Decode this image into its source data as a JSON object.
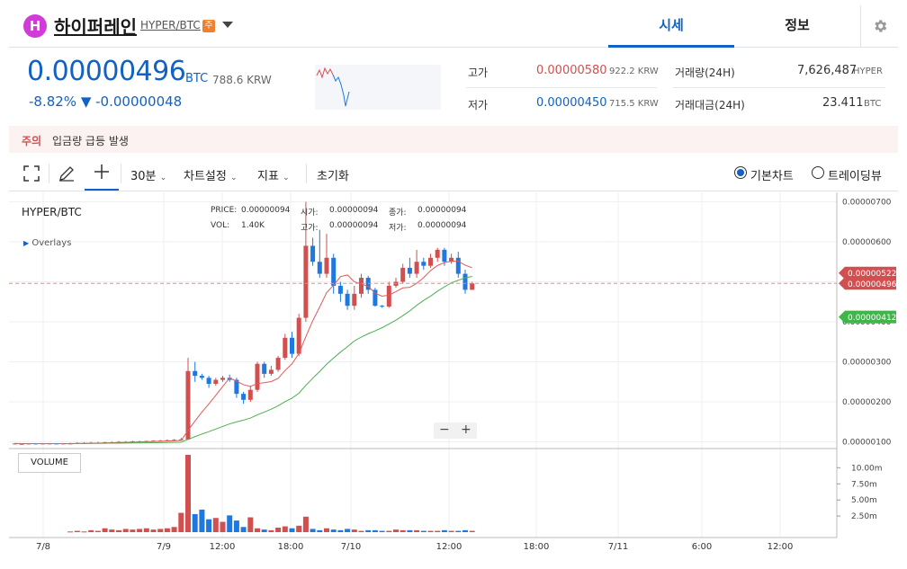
{
  "header": {
    "logo_letter": "H",
    "coin_name": "하이퍼레인",
    "pair": "HYPER/BTC",
    "caution_badge": "주",
    "tabs": [
      {
        "label": "시세"
      },
      {
        "label": "정보"
      }
    ]
  },
  "summary": {
    "price": "0.00000496",
    "price_unit": "BTC",
    "price_krw": "788.6 KRW",
    "change_rate": "-8.82% ▼ -0.00000048",
    "high_label": "고가",
    "high_price": "0.00000580",
    "high_krw": "922.2 KRW",
    "low_label": "저가",
    "low_price": "0.00000450",
    "low_krw": "715.5 KRW",
    "volume_label": "거래량(24H)",
    "volume_value": "7,626,487",
    "volume_unit": "HYPER",
    "amount_label": "거래대금(24H)",
    "amount_value": "23.411",
    "amount_unit": "BTC"
  },
  "notice": {
    "label": "주의",
    "text": "입금량 급등 발생"
  },
  "toolbar": {
    "interval": "30분",
    "chart_settings": "차트설정",
    "indicators": "지표",
    "reset": "초기화",
    "basic_chart": "기본차트",
    "tradingview": "트레이딩뷰"
  },
  "chart_legend": {
    "pair": "HYPER/BTC",
    "overlays": "Overlays",
    "price_label": "PRICE:",
    "price_value": "0.00000094",
    "vol_label": "VOL:",
    "vol_value": "1.40K",
    "open_label": "시가:",
    "open_value": "0.00000094",
    "close_label": "종가:",
    "close_value": "0.00000094",
    "high_label": "고가:",
    "high_value": "0.00000094",
    "low_label": "저가:",
    "low_value": "0.00000094",
    "volume_pane_label": "VOLUME"
  },
  "colors": {
    "up": "#d24f4f",
    "down": "#1f78e0",
    "ma_short": "#e05a5a",
    "ma_long": "#4caf50",
    "accent": "#1261c4"
  },
  "chart_data": {
    "type": "candlestick",
    "y_ticks": [
      "0.00000700",
      "0.00000600",
      "0.00000500",
      "0.00000400",
      "0.00000300",
      "0.00000200",
      "0.00000100"
    ],
    "ylim": [
      9e-07,
      7.1e-06
    ],
    "x_ticks": [
      "7/8",
      "7/9",
      "12:00",
      "18:00",
      "7/10",
      "12:00",
      "18:00",
      "7/11",
      "6:00",
      "12:00"
    ],
    "price_badges": [
      {
        "value": "0.00000522",
        "series": "ma_short"
      },
      {
        "value": "0.00000496",
        "series": "current"
      },
      {
        "value": "0.00000412",
        "series": "ma_long"
      }
    ],
    "volume_ticks": [
      "10.00m",
      "7.50m",
      "5.00m",
      "2.50m"
    ],
    "volume_ylim": [
      0,
      12
    ],
    "candles": [
      [
        0.95,
        0.96,
        0.97,
        0.94
      ],
      [
        0.95,
        0.95,
        0.96,
        0.94
      ],
      [
        0.95,
        0.96,
        0.97,
        0.94
      ],
      [
        0.96,
        0.95,
        0.97,
        0.94
      ],
      [
        0.95,
        0.96,
        0.97,
        0.94
      ],
      [
        0.96,
        0.96,
        0.97,
        0.95
      ],
      [
        0.96,
        0.95,
        0.97,
        0.94
      ],
      [
        0.95,
        0.96,
        0.97,
        0.94
      ],
      [
        0.96,
        0.96,
        0.98,
        0.95
      ],
      [
        0.96,
        0.97,
        0.99,
        0.95
      ],
      [
        0.97,
        0.97,
        0.99,
        0.96
      ],
      [
        0.97,
        0.98,
        1.0,
        0.96
      ],
      [
        0.98,
        0.98,
        1.0,
        0.97
      ],
      [
        0.98,
        0.99,
        1.0,
        0.97
      ],
      [
        0.99,
        0.99,
        1.01,
        0.98
      ],
      [
        0.99,
        1.0,
        1.02,
        0.98
      ],
      [
        1.0,
        1.0,
        1.02,
        0.99
      ],
      [
        1.0,
        1.01,
        1.03,
        0.99
      ],
      [
        1.01,
        1.01,
        1.03,
        1.0
      ],
      [
        1.01,
        1.02,
        1.03,
        1.0
      ],
      [
        1.02,
        1.03,
        1.04,
        1.01
      ],
      [
        1.03,
        1.03,
        1.05,
        1.02
      ],
      [
        1.03,
        1.04,
        1.06,
        1.02
      ],
      [
        1.04,
        1.05,
        1.07,
        1.03
      ],
      [
        1.05,
        1.06,
        1.1,
        1.04
      ],
      [
        1.06,
        2.77,
        3.1,
        1.05
      ],
      [
        2.77,
        2.65,
        3.0,
        2.5
      ],
      [
        2.65,
        2.6,
        2.7,
        2.55
      ],
      [
        2.6,
        2.45,
        2.65,
        2.35
      ],
      [
        2.45,
        2.55,
        2.6,
        2.4
      ],
      [
        2.55,
        2.6,
        2.65,
        2.5
      ],
      [
        2.6,
        2.55,
        2.68,
        2.5
      ],
      [
        2.55,
        2.2,
        2.6,
        2.1
      ],
      [
        2.2,
        2.05,
        2.25,
        1.95
      ],
      [
        2.05,
        2.3,
        2.4,
        2.0
      ],
      [
        2.3,
        2.95,
        3.0,
        2.25
      ],
      [
        2.95,
        2.7,
        3.0,
        2.6
      ],
      [
        2.7,
        2.8,
        2.9,
        2.65
      ],
      [
        2.8,
        3.1,
        3.15,
        2.75
      ],
      [
        3.1,
        3.6,
        3.7,
        3.05
      ],
      [
        3.6,
        3.2,
        3.75,
        3.1
      ],
      [
        3.2,
        4.1,
        4.2,
        3.15
      ],
      [
        4.1,
        5.9,
        7.0,
        4.0
      ],
      [
        5.9,
        5.5,
        6.1,
        5.4
      ],
      [
        5.5,
        5.2,
        6.3,
        5.1
      ],
      [
        5.2,
        5.6,
        6.2,
        5.1
      ],
      [
        5.6,
        4.9,
        5.7,
        4.7
      ],
      [
        4.9,
        4.7,
        5.0,
        4.5
      ],
      [
        4.7,
        4.4,
        4.8,
        4.3
      ],
      [
        4.4,
        4.7,
        4.9,
        4.3
      ],
      [
        4.7,
        5.1,
        5.2,
        4.6
      ],
      [
        5.1,
        4.8,
        5.15,
        4.7
      ],
      [
        4.8,
        4.4,
        4.85,
        4.38
      ],
      [
        4.4,
        4.38,
        4.42,
        4.35
      ],
      [
        4.38,
        4.9,
        5.0,
        4.35
      ],
      [
        4.9,
        5.0,
        5.1,
        4.85
      ],
      [
        5.0,
        5.35,
        5.45,
        4.95
      ],
      [
        5.35,
        5.2,
        5.6,
        5.1
      ],
      [
        5.2,
        5.5,
        5.8,
        5.1
      ],
      [
        5.5,
        5.4,
        5.6,
        5.3
      ],
      [
        5.4,
        5.6,
        5.7,
        5.35
      ],
      [
        5.6,
        5.8,
        5.85,
        5.5
      ],
      [
        5.8,
        5.5,
        5.85,
        5.4
      ],
      [
        5.5,
        5.6,
        5.7,
        5.45
      ],
      [
        5.6,
        5.2,
        5.75,
        5.1
      ],
      [
        5.2,
        4.8,
        5.3,
        4.7
      ],
      [
        4.8,
        4.96,
        5.0,
        4.8
      ]
    ],
    "volumes": [
      0,
      0,
      0,
      0,
      0,
      0,
      0,
      0,
      0.1,
      0.2,
      0.1,
      0.3,
      0.2,
      0.6,
      0.4,
      0.3,
      0.5,
      0.4,
      0.5,
      0.6,
      0.4,
      0.5,
      0.6,
      0.8,
      3.0,
      12.0,
      2.8,
      3.5,
      2.0,
      2.2,
      1.6,
      2.6,
      1.8,
      0.8,
      2.3,
      0.6,
      0.4,
      0.3,
      0.7,
      0.9,
      0.6,
      1.0,
      2.4,
      0.5,
      0.3,
      0.6,
      0.4,
      0.3,
      0.5,
      0.4,
      0.2,
      0.3,
      0.3,
      0.2,
      0.2,
      0.4,
      0.3,
      0.3,
      0.3,
      0.2,
      0.2,
      0.2,
      0.3,
      0.2,
      0.2,
      0.3,
      0.2
    ]
  }
}
